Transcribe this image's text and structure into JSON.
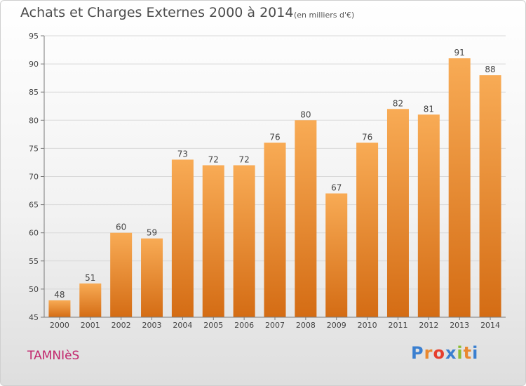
{
  "header": {
    "title": "Achats et Charges Externes 2000 à 2014",
    "subtitle": "(en milliers d'€)"
  },
  "footer": {
    "location": "TAMNIèS",
    "logo_text": "Proxiti",
    "logo_colors": [
      "#3a7fd0",
      "#e9882f",
      "#e63f2e",
      "#3a7fd0",
      "#8bbd35",
      "#e9882f",
      "#3a7fd0"
    ]
  },
  "colors": {
    "bar_top": "#f8ab55",
    "bar_bottom": "#d46c14",
    "grid": "#d9d9d9",
    "axis": "#7a7a7a",
    "text": "#444444"
  },
  "chart_data": {
    "type": "bar",
    "title": "Achats et Charges Externes 2000 à 2014",
    "subtitle": "(en milliers d'€)",
    "xlabel": "",
    "ylabel": "",
    "categories": [
      "2000",
      "2001",
      "2002",
      "2003",
      "2004",
      "2005",
      "2006",
      "2007",
      "2008",
      "2009",
      "2010",
      "2011",
      "2012",
      "2013",
      "2014"
    ],
    "values": [
      48,
      51,
      60,
      59,
      73,
      72,
      72,
      76,
      80,
      67,
      76,
      82,
      81,
      91,
      88
    ],
    "ylim": [
      45,
      95
    ],
    "yticks": [
      45,
      50,
      55,
      60,
      65,
      70,
      75,
      80,
      85,
      90,
      95
    ],
    "data_labels": true,
    "grid": true,
    "legend": "none"
  }
}
